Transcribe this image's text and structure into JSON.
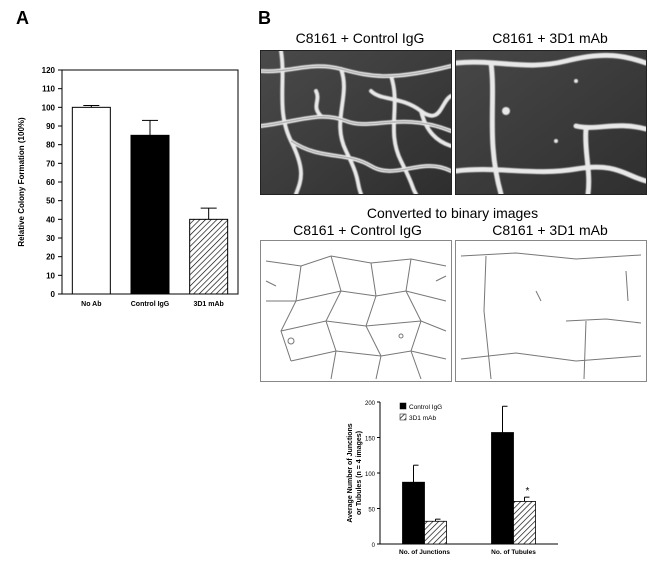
{
  "panels": {
    "a_label": "A",
    "b_label": "B",
    "micro_left_title": "C8161 + Control IgG",
    "micro_right_title": "C8161 + 3D1 mAb",
    "binary_heading": "Converted to binary images",
    "binary_left_title": "C8161 + Control IgG",
    "binary_right_title": "C8161 + 3D1 mAb"
  },
  "chart_data": [
    {
      "type": "bar",
      "title": "",
      "xlabel": "",
      "ylabel": "Relative Colony Formation (100%)",
      "ylim": [
        0,
        120
      ],
      "yticks": [
        "0",
        "10",
        "20",
        "30",
        "40",
        "50",
        "60",
        "70",
        "80",
        "90",
        "100",
        "110",
        "120"
      ],
      "categories": [
        "No Ab",
        "Control IgG",
        "3D1 mAb"
      ],
      "values": [
        100,
        85,
        40
      ],
      "errors": [
        1,
        8,
        6
      ],
      "fills": [
        "white",
        "black",
        "hatched"
      ],
      "grid": false
    },
    {
      "type": "bar",
      "title": "",
      "xlabel": "",
      "ylabel_line1": "Average Number of Junctions",
      "ylabel_line2": "or Tubules (n = 4 images)",
      "ylim": [
        0,
        200
      ],
      "yticks": [
        "0",
        "50",
        "100",
        "150",
        "200"
      ],
      "categories": [
        "No. of Junctions",
        "No. of Tubules"
      ],
      "series": [
        {
          "name": "Control IgG",
          "values": [
            87,
            157
          ],
          "errors": [
            24,
            37
          ],
          "fill": "black"
        },
        {
          "name": "3D1 mAb",
          "values": [
            32,
            60
          ],
          "errors": [
            3,
            6
          ],
          "fill": "hatched"
        }
      ],
      "annotations": [
        {
          "category": "No. of Tubules",
          "series": "3D1 mAb",
          "text": "*"
        }
      ],
      "legend": "top-left",
      "grid": false
    }
  ],
  "colors": {
    "black": "#000000",
    "white": "#ffffff",
    "image_bg": "#3a3a3a",
    "network": "#e6e6e6"
  }
}
